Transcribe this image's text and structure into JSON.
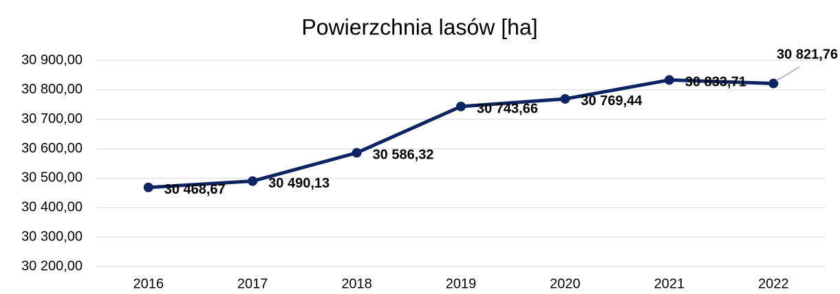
{
  "chart_data": {
    "type": "line",
    "title": "Powierzchnia lasów [ha]",
    "categories": [
      "2016",
      "2017",
      "2018",
      "2019",
      "2020",
      "2021",
      "2022"
    ],
    "series": [
      {
        "name": "Powierzchnia lasów [ha]",
        "color": "#0c2462",
        "values": [
          30468.67,
          30490.13,
          30586.32,
          30743.66,
          30769.44,
          30833.71,
          30821.76
        ],
        "value_labels": [
          "30 468,67",
          "30 490,13",
          "30 586,32",
          "30 743,66",
          "30 769,44",
          "30 833,71",
          "30 821,76"
        ]
      }
    ],
    "ylim": [
      30200,
      30900
    ],
    "yticks": [
      {
        "value": 30200,
        "label": "30 200,00"
      },
      {
        "value": 30300,
        "label": "30 300,00"
      },
      {
        "value": 30400,
        "label": "30 400,00"
      },
      {
        "value": 30500,
        "label": "30 500,00"
      },
      {
        "value": 30600,
        "label": "30 600,00"
      },
      {
        "value": 30700,
        "label": "30 700,00"
      },
      {
        "value": 30800,
        "label": "30 800,00"
      },
      {
        "value": 30900,
        "label": "30 900,00"
      }
    ],
    "grid": true
  }
}
